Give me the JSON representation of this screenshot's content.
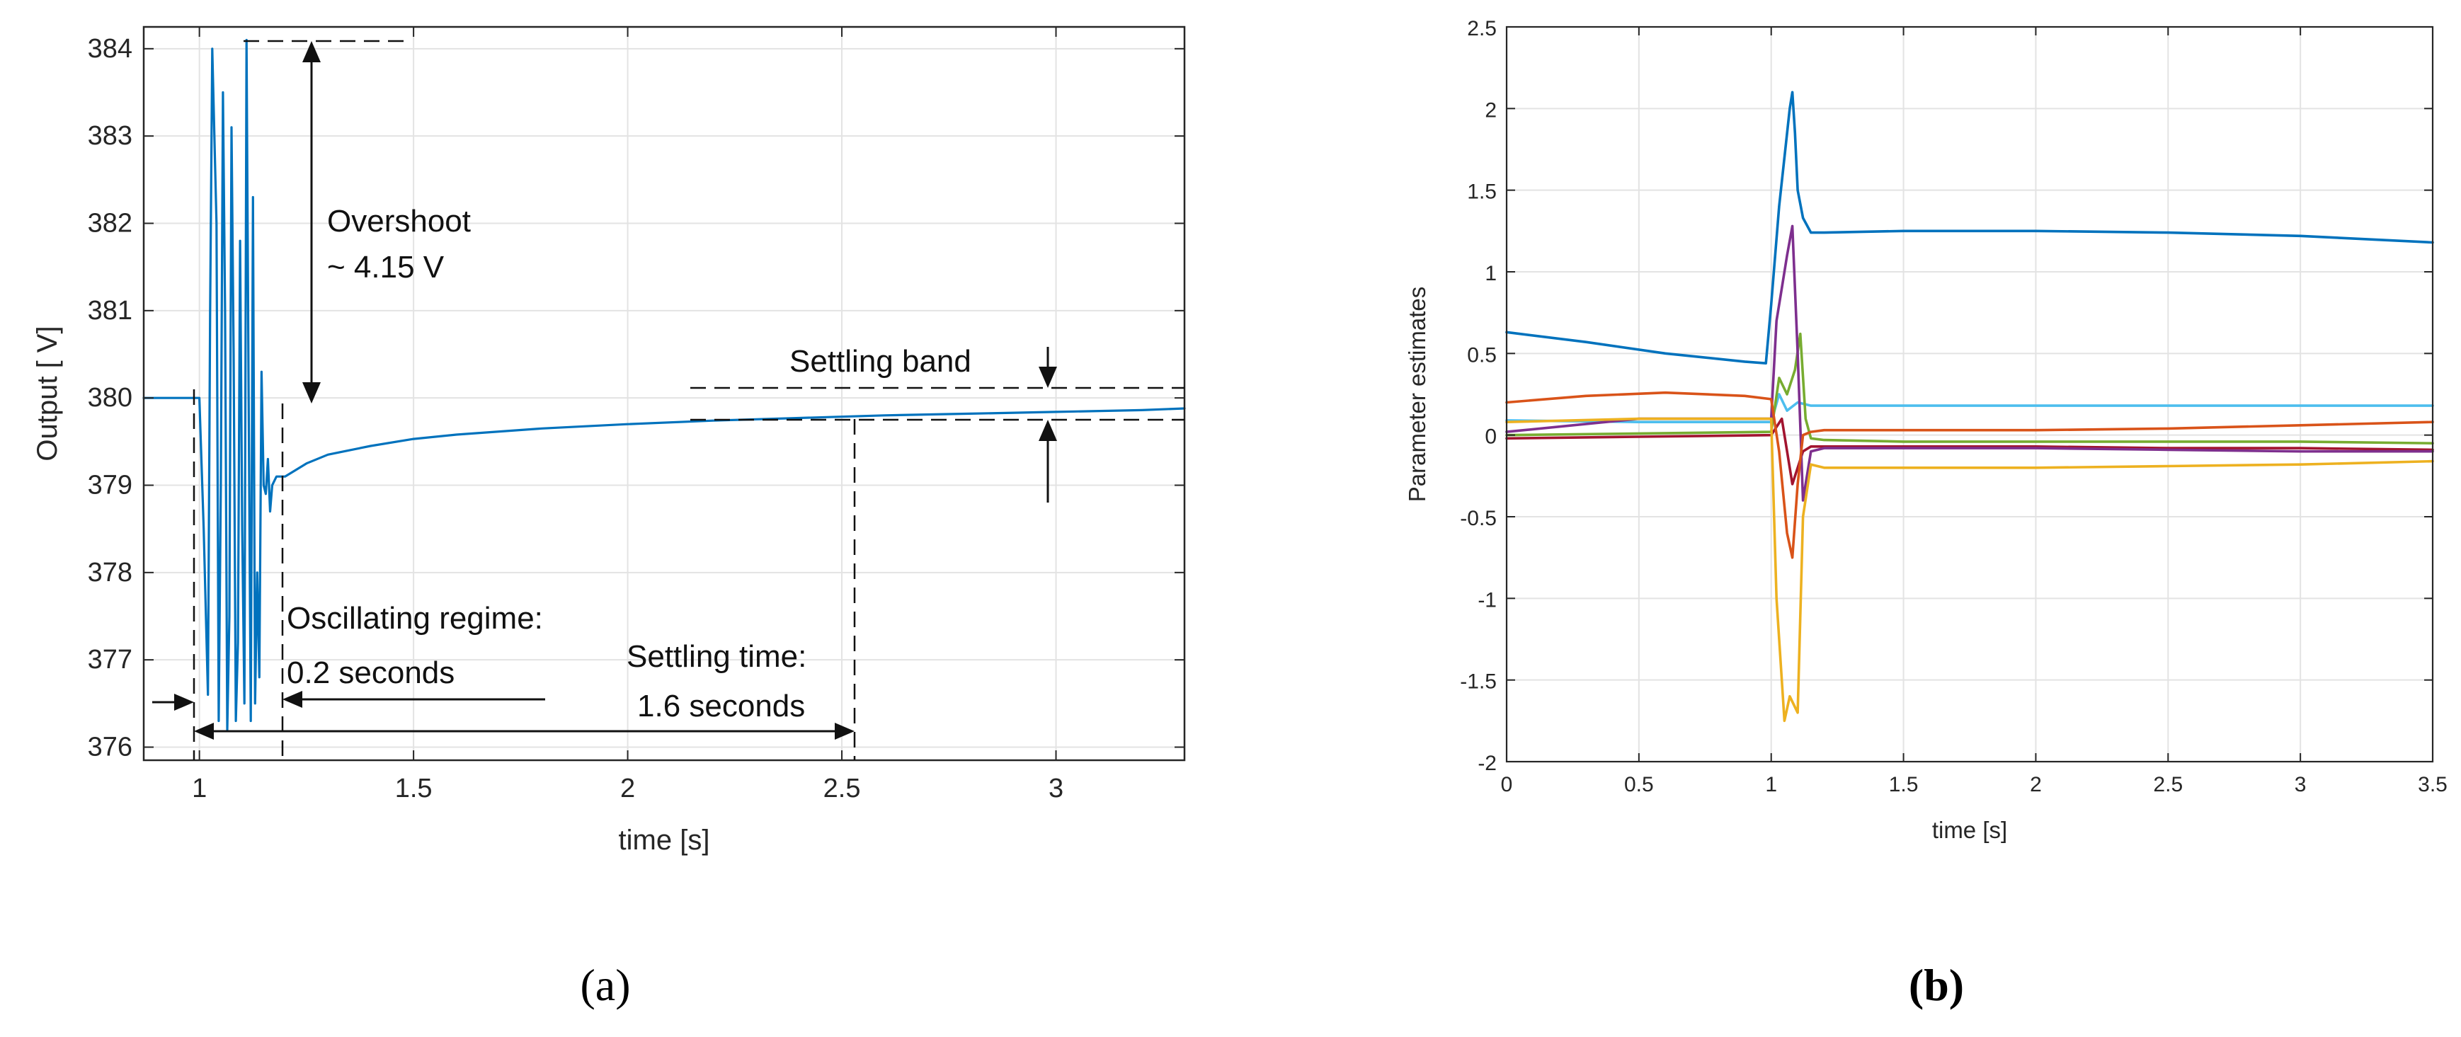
{
  "chart_data": [
    {
      "type": "line",
      "panel_label": "(a)",
      "title": "",
      "xlabel": "time [s]",
      "ylabel": "Output [ V]",
      "xlim": [
        0.87,
        3.3
      ],
      "ylim": [
        375.85,
        384.25
      ],
      "xticks": [
        1,
        1.5,
        2,
        2.5,
        3
      ],
      "xtick_labels": [
        "1",
        "1.5",
        "2",
        "2.5",
        "3"
      ],
      "yticks": [
        376,
        377,
        378,
        379,
        380,
        381,
        382,
        383,
        384
      ],
      "ytick_labels": [
        "376",
        "377",
        "378",
        "379",
        "380",
        "381",
        "382",
        "383",
        "384"
      ],
      "grid": true,
      "legend": "none",
      "series": [
        {
          "color": "#0072BD",
          "x": [
            0.87,
            0.95,
            0.99,
            1.0,
            1.01,
            1.02,
            1.025,
            1.03,
            1.04,
            1.045,
            1.05,
            1.055,
            1.06,
            1.065,
            1.07,
            1.075,
            1.08,
            1.085,
            1.09,
            1.095,
            1.1,
            1.105,
            1.11,
            1.115,
            1.12,
            1.125,
            1.13,
            1.135,
            1.14,
            1.145,
            1.15,
            1.155,
            1.16,
            1.165,
            1.17,
            1.18,
            1.2,
            1.25,
            1.3,
            1.4,
            1.5,
            1.6,
            1.8,
            2.0,
            2.2,
            2.4,
            2.6,
            2.8,
            3.0,
            3.2,
            3.3
          ],
          "y": [
            380.0,
            380.0,
            380.0,
            380.0,
            378.5,
            376.6,
            381.0,
            384.0,
            382.0,
            376.3,
            379.0,
            383.5,
            381.0,
            376.2,
            377.5,
            383.1,
            380.5,
            376.3,
            377.2,
            381.8,
            378.5,
            376.5,
            384.1,
            380.0,
            376.3,
            382.3,
            376.5,
            378.0,
            376.8,
            380.3,
            379.0,
            378.9,
            379.3,
            378.7,
            379.0,
            379.1,
            379.1,
            379.25,
            379.35,
            379.45,
            379.53,
            379.58,
            379.65,
            379.7,
            379.74,
            379.77,
            379.8,
            379.82,
            379.84,
            379.86,
            379.88
          ]
        }
      ],
      "annotations": {
        "overshoot_line1": "Overshoot",
        "overshoot_line2": "~ 4.15 V",
        "settling_band": "Settling band",
        "oscillating_line1": "Oscillating regime:",
        "oscillating_line2": "0.2 seconds",
        "settling_time_line1": "Settling time:",
        "settling_time_line2": "1.6 seconds"
      }
    },
    {
      "type": "line",
      "panel_label": "(b)",
      "title": "",
      "xlabel": "time [s]",
      "ylabel": "Parameter estimates",
      "xlim": [
        0,
        3.5
      ],
      "ylim": [
        -2,
        2.5
      ],
      "xticks": [
        0,
        0.5,
        1,
        1.5,
        2,
        2.5,
        3,
        3.5
      ],
      "xtick_labels": [
        "0",
        "0.5",
        "1",
        "1.5",
        "2",
        "2.5",
        "3",
        "3.5"
      ],
      "yticks": [
        -2,
        -1.5,
        -1,
        -0.5,
        0,
        0.5,
        1,
        1.5,
        2,
        2.5
      ],
      "ytick_labels": [
        "-2",
        "-1.5",
        "-1",
        "-0.5",
        "0",
        "0.5",
        "1",
        "1.5",
        "2",
        "2.5"
      ],
      "grid": true,
      "legend": "none",
      "series": [
        {
          "color": "#0072BD",
          "x": [
            0,
            0.3,
            0.6,
            0.9,
            0.98,
            1.0,
            1.03,
            1.05,
            1.07,
            1.08,
            1.09,
            1.1,
            1.12,
            1.15,
            1.2,
            1.5,
            2.0,
            2.5,
            3.0,
            3.5
          ],
          "y": [
            0.63,
            0.57,
            0.5,
            0.45,
            0.44,
            0.8,
            1.4,
            1.7,
            2.0,
            2.1,
            1.85,
            1.5,
            1.33,
            1.24,
            1.24,
            1.25,
            1.25,
            1.24,
            1.22,
            1.18
          ]
        },
        {
          "color": "#D95319",
          "x": [
            0,
            0.3,
            0.6,
            0.9,
            1.0,
            1.03,
            1.06,
            1.08,
            1.1,
            1.12,
            1.15,
            1.2,
            1.5,
            2.0,
            2.5,
            3.0,
            3.5
          ],
          "y": [
            0.2,
            0.24,
            0.26,
            0.24,
            0.22,
            -0.1,
            -0.6,
            -0.75,
            -0.3,
            0.0,
            0.02,
            0.03,
            0.03,
            0.03,
            0.04,
            0.06,
            0.08
          ]
        },
        {
          "color": "#EDB120",
          "x": [
            0,
            0.5,
            1.0,
            1.02,
            1.05,
            1.07,
            1.1,
            1.12,
            1.15,
            1.2,
            1.5,
            2.0,
            2.5,
            3.0,
            3.5
          ],
          "y": [
            0.08,
            0.1,
            0.1,
            -1.0,
            -1.75,
            -1.6,
            -1.7,
            -0.5,
            -0.18,
            -0.2,
            -0.2,
            -0.2,
            -0.19,
            -0.18,
            -0.16
          ]
        },
        {
          "color": "#7E2F8E",
          "x": [
            0,
            0.5,
            1.0,
            1.02,
            1.04,
            1.06,
            1.08,
            1.1,
            1.12,
            1.15,
            1.2,
            1.5,
            2.0,
            2.5,
            3.0,
            3.5
          ],
          "y": [
            0.02,
            0.1,
            0.1,
            0.7,
            0.9,
            1.1,
            1.28,
            0.5,
            -0.4,
            -0.1,
            -0.08,
            -0.08,
            -0.08,
            -0.09,
            -0.1,
            -0.1
          ]
        },
        {
          "color": "#77AC30",
          "x": [
            0,
            0.5,
            1.0,
            1.03,
            1.06,
            1.09,
            1.11,
            1.13,
            1.15,
            1.2,
            1.5,
            2.0,
            2.5,
            3.0,
            3.5
          ],
          "y": [
            0.0,
            0.01,
            0.02,
            0.35,
            0.25,
            0.4,
            0.62,
            0.1,
            -0.02,
            -0.03,
            -0.04,
            -0.04,
            -0.04,
            -0.04,
            -0.05
          ]
        },
        {
          "color": "#4DBEEE",
          "x": [
            0,
            0.5,
            1.0,
            1.03,
            1.06,
            1.1,
            1.15,
            1.2,
            1.5,
            2.0,
            2.5,
            3.0,
            3.5
          ],
          "y": [
            0.09,
            0.08,
            0.08,
            0.25,
            0.15,
            0.2,
            0.18,
            0.18,
            0.18,
            0.18,
            0.18,
            0.18,
            0.18
          ]
        },
        {
          "color": "#A2142F",
          "x": [
            0,
            0.5,
            1.0,
            1.04,
            1.08,
            1.12,
            1.15,
            1.2,
            1.5,
            2.0,
            2.5,
            3.0,
            3.5
          ],
          "y": [
            -0.02,
            -0.01,
            0.0,
            0.1,
            -0.3,
            -0.1,
            -0.07,
            -0.07,
            -0.07,
            -0.07,
            -0.08,
            -0.08,
            -0.09
          ]
        }
      ]
    }
  ]
}
